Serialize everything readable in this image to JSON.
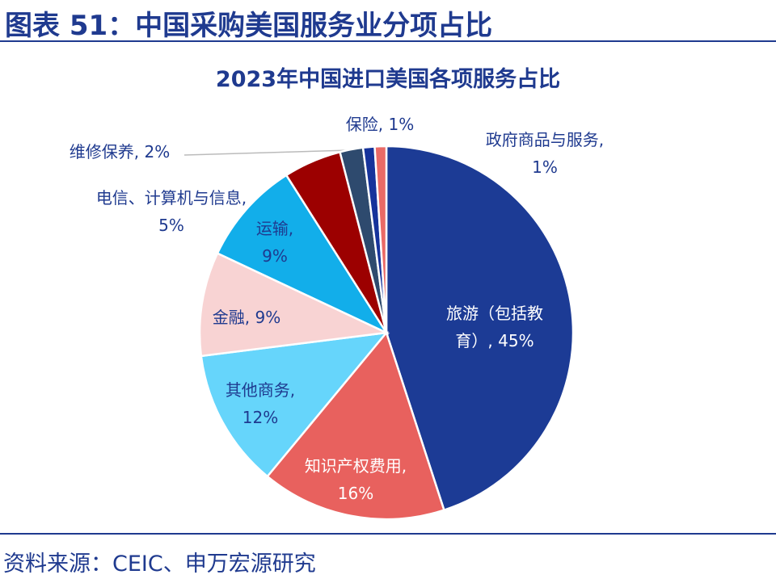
{
  "header": {
    "title": "图表 51：中国采购美国服务业分项占比"
  },
  "chart_data": {
    "type": "pie",
    "title": "2023年中国进口美国各项服务占比",
    "values": [
      45,
      16,
      12,
      9,
      9,
      5,
      2,
      1,
      1
    ],
    "value_labels": [
      "旅游（包括教育）, 45%",
      "知识产权费用, 16%",
      "其他商务, 12%",
      "金融, 9%",
      "运输, 9%",
      "电信、计算机与信息, 5%",
      "维修保养, 2%",
      "保险, 1%",
      "政府商品与服务, 1%"
    ],
    "colors": [
      "#1c3b95",
      "#e8615e",
      "#66d5fb",
      "#f8d3d3",
      "#12aeea",
      "#9c0000",
      "#2e4a6e",
      "#16339b",
      "#ea6a66"
    ]
  },
  "source": "资料来源：CEIC、申万宏源研究"
}
